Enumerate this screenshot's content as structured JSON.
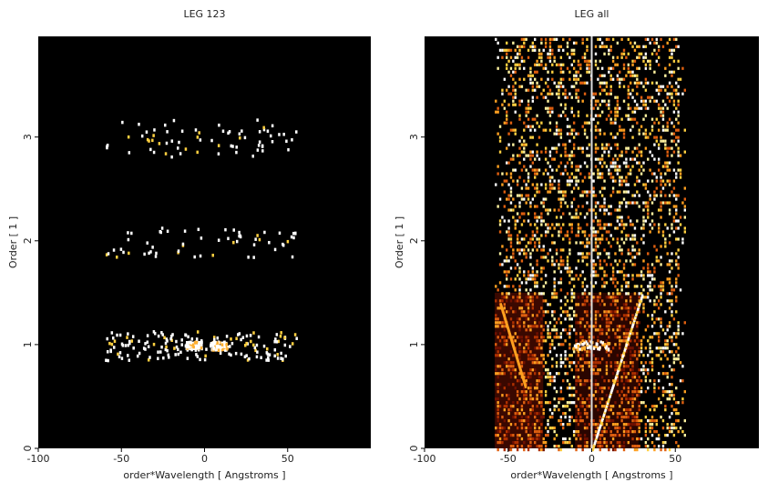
{
  "chart_data": [
    {
      "type": "image",
      "title": "LEG 123",
      "xlabel": "order*Wavelength [ Angstroms ]",
      "ylabel": "Order [ 1 ]",
      "xlim": [
        -100,
        100
      ],
      "ylim": [
        0,
        3.97
      ],
      "xticks": [
        -100,
        -50,
        0,
        50
      ],
      "yticks": [
        0,
        1,
        2,
        3
      ]
    },
    {
      "type": "image",
      "title": "LEG all",
      "xlabel": "order*Wavelength [ Angstroms ]",
      "ylabel": "Order [ 1 ]",
      "xlim": [
        -100,
        100
      ],
      "ylim": [
        0,
        3.97
      ],
      "xticks": [
        -100,
        -50,
        0,
        50
      ],
      "yticks": [
        0,
        1,
        2,
        3
      ]
    }
  ]
}
